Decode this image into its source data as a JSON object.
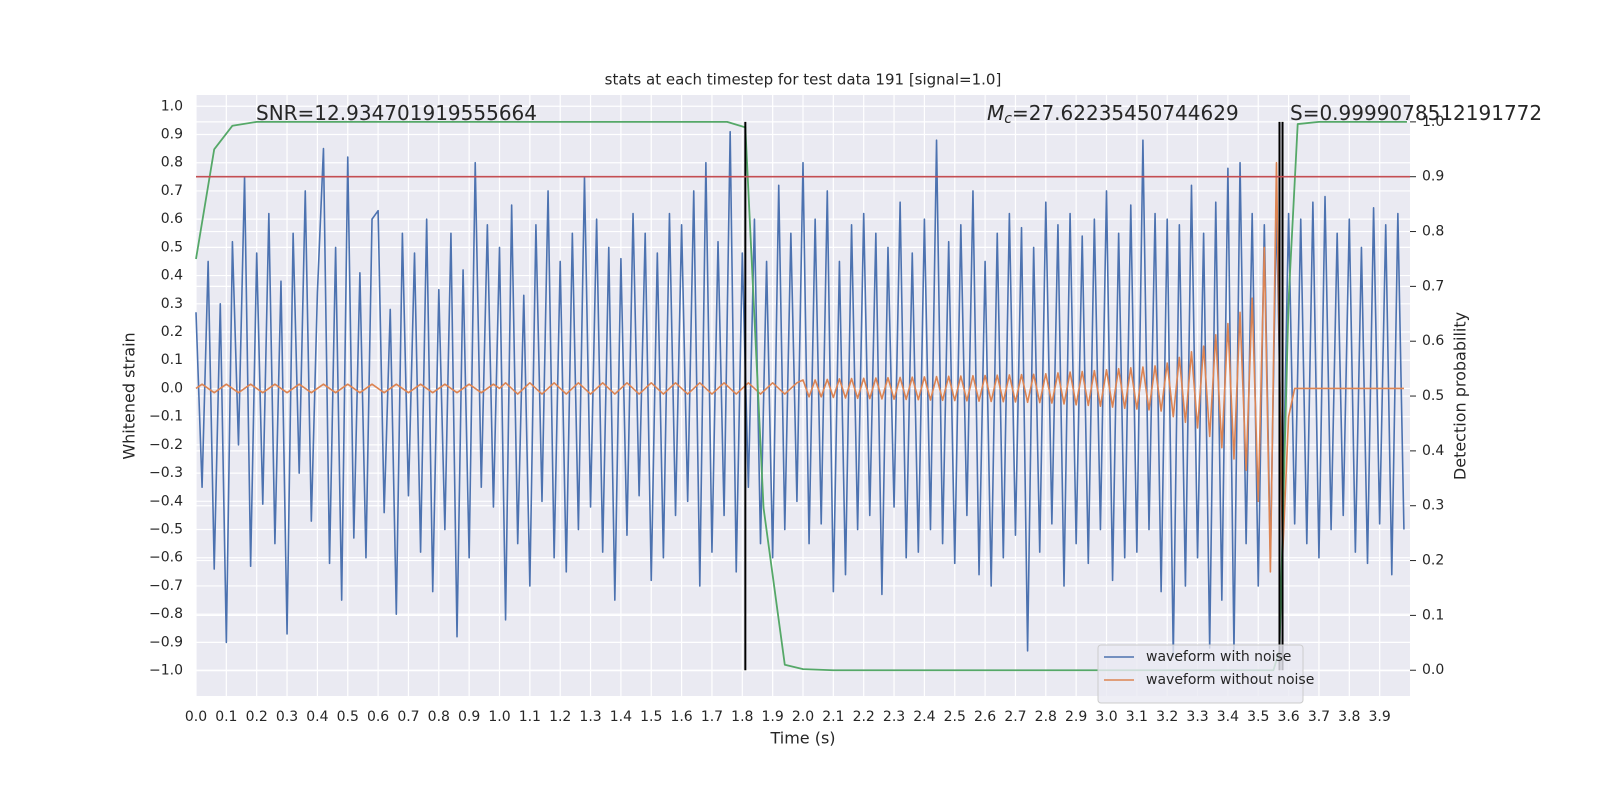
{
  "chart_data": {
    "type": "line",
    "title": "stats at each timestep for test data 191 [signal=1.0]",
    "x_label": "Time (s)",
    "y_label": "Whitened strain",
    "y2_label": "Detection probability",
    "annotations": [
      {
        "text": "SNR=12.934701919555664"
      },
      {
        "symbol": "M",
        "subscript": "c",
        "text": "=27.62235450744629"
      },
      {
        "text": "S=0.9999078512191772"
      }
    ],
    "x": [
      0,
      0.02,
      0.04,
      0.06,
      0.08,
      0.1,
      0.12,
      0.14,
      0.16,
      0.18,
      0.2,
      0.22,
      0.24,
      0.26,
      0.28,
      0.3,
      0.32,
      0.34,
      0.36,
      0.38,
      0.4,
      0.42,
      0.44,
      0.46,
      0.48,
      0.5,
      0.52,
      0.54,
      0.56,
      0.58,
      0.6,
      0.62,
      0.64,
      0.66,
      0.68,
      0.7,
      0.72,
      0.74,
      0.76,
      0.78,
      0.8,
      0.82,
      0.84,
      0.86,
      0.88,
      0.9,
      0.92,
      0.94,
      0.96,
      0.98,
      1.0,
      1.02,
      1.04,
      1.06,
      1.08,
      1.1,
      1.12,
      1.14,
      1.16,
      1.18,
      1.2,
      1.22,
      1.24,
      1.26,
      1.28,
      1.3,
      1.32,
      1.34,
      1.36,
      1.38,
      1.4,
      1.42,
      1.44,
      1.46,
      1.48,
      1.5,
      1.52,
      1.54,
      1.56,
      1.58,
      1.6,
      1.62,
      1.64,
      1.66,
      1.68,
      1.7,
      1.72,
      1.74,
      1.76,
      1.78,
      1.8,
      1.82,
      1.84,
      1.86,
      1.88,
      1.9,
      1.92,
      1.94,
      1.96,
      1.98,
      2.0,
      2.02,
      2.04,
      2.06,
      2.08,
      2.1,
      2.12,
      2.14,
      2.16,
      2.18,
      2.2,
      2.22,
      2.24,
      2.26,
      2.28,
      2.3,
      2.32,
      2.34,
      2.36,
      2.38,
      2.4,
      2.42,
      2.44,
      2.46,
      2.48,
      2.5,
      2.52,
      2.54,
      2.56,
      2.58,
      2.6,
      2.62,
      2.64,
      2.66,
      2.68,
      2.7,
      2.72,
      2.74,
      2.76,
      2.78,
      2.8,
      2.82,
      2.84,
      2.86,
      2.88,
      2.9,
      2.92,
      2.94,
      2.96,
      2.98,
      3.0,
      3.02,
      3.04,
      3.06,
      3.08,
      3.1,
      3.12,
      3.14,
      3.16,
      3.18,
      3.2,
      3.22,
      3.24,
      3.26,
      3.28,
      3.3,
      3.32,
      3.34,
      3.36,
      3.38,
      3.4,
      3.42,
      3.44,
      3.46,
      3.48,
      3.5,
      3.52,
      3.54,
      3.56,
      3.58,
      3.6,
      3.62,
      3.64,
      3.66,
      3.68,
      3.7,
      3.72,
      3.74,
      3.76,
      3.78,
      3.8,
      3.82,
      3.84,
      3.86,
      3.88,
      3.9,
      3.92,
      3.94,
      3.96,
      3.98
    ],
    "series": [
      {
        "name": "waveform with noise",
        "color": "#4c72b0",
        "values": [
          0.27,
          -0.35,
          0.45,
          -0.64,
          0.3,
          -0.9,
          0.52,
          -0.2,
          0.75,
          -0.63,
          0.48,
          -0.41,
          0.62,
          -0.55,
          0.38,
          -0.87,
          0.55,
          -0.3,
          0.7,
          -0.47,
          0.34,
          0.85,
          -0.62,
          0.5,
          -0.75,
          0.82,
          -0.53,
          0.41,
          -0.6,
          0.6,
          0.63,
          -0.44,
          0.28,
          -0.8,
          0.55,
          -0.38,
          0.48,
          -0.58,
          0.6,
          -0.72,
          0.35,
          -0.5,
          0.55,
          -0.88,
          0.42,
          -0.6,
          0.8,
          -0.35,
          0.58,
          -0.42,
          0.5,
          -0.82,
          0.65,
          -0.55,
          0.33,
          -0.7,
          0.58,
          -0.4,
          0.7,
          -0.6,
          0.45,
          -0.65,
          0.55,
          -0.5,
          0.75,
          -0.42,
          0.6,
          -0.58,
          0.5,
          -0.75,
          0.46,
          -0.52,
          0.62,
          -0.38,
          0.55,
          -0.68,
          0.48,
          -0.6,
          0.62,
          -0.45,
          0.58,
          -0.4,
          0.7,
          -0.7,
          0.8,
          -0.58,
          0.52,
          -0.45,
          0.91,
          -0.65,
          0.48,
          -0.35,
          0.6,
          -0.55,
          0.45,
          -0.6,
          0.72,
          -0.5,
          0.55,
          -0.4,
          0.8,
          -0.55,
          0.6,
          -0.48,
          0.7,
          -0.72,
          0.45,
          -0.66,
          0.58,
          -0.5,
          0.62,
          -0.45,
          0.55,
          -0.73,
          0.5,
          -0.42,
          0.66,
          -0.6,
          0.48,
          -0.58,
          0.6,
          -0.5,
          0.88,
          -0.55,
          0.52,
          -0.62,
          0.58,
          -0.45,
          0.7,
          -0.66,
          0.45,
          -0.7,
          0.55,
          -0.6,
          0.62,
          -0.52,
          0.57,
          -0.93,
          0.5,
          -0.58,
          0.66,
          -0.48,
          0.58,
          -0.7,
          0.62,
          -0.55,
          0.54,
          -0.62,
          0.6,
          -0.5,
          0.7,
          -0.68,
          0.55,
          -0.6,
          0.65,
          -0.58,
          0.88,
          -0.5,
          0.62,
          -0.72,
          0.6,
          -0.95,
          0.58,
          -0.7,
          0.72,
          -0.6,
          0.55,
          -0.92,
          0.66,
          -0.75,
          0.78,
          -0.93,
          0.8,
          -0.55,
          0.62,
          -0.7,
          0.58,
          -0.6,
          0.64,
          -0.5,
          0.62,
          -0.48,
          0.6,
          -0.55,
          0.66,
          -0.6,
          0.68,
          -0.5,
          0.55,
          -0.45,
          0.6,
          -0.58,
          0.5,
          -0.62,
          0.64,
          -0.48,
          0.58,
          -0.66,
          0.62,
          -0.5
        ]
      },
      {
        "name": "waveform without noise",
        "color": "#dd8452",
        "values": [
          0,
          0.015,
          0,
          -0.015,
          0,
          0.015,
          0,
          -0.015,
          0,
          0.015,
          0,
          -0.015,
          0,
          0.015,
          0,
          -0.015,
          0,
          0.015,
          0,
          -0.015,
          0,
          0.015,
          0,
          -0.015,
          0,
          0.015,
          0,
          -0.015,
          0,
          0.015,
          0,
          -0.015,
          0,
          0.015,
          0,
          -0.015,
          0,
          0.015,
          0,
          -0.015,
          0,
          0.015,
          0,
          -0.015,
          0,
          0.015,
          0,
          -0.015,
          0,
          0.015,
          0,
          0.02,
          0,
          -0.02,
          0,
          0.02,
          0,
          -0.02,
          0,
          0.02,
          0,
          -0.02,
          0,
          0.02,
          0,
          -0.02,
          0,
          0.02,
          0,
          -0.02,
          0,
          0.02,
          0,
          -0.02,
          0,
          0.02,
          0,
          -0.02,
          0,
          0.02,
          0,
          -0.02,
          0,
          0.02,
          0,
          -0.02,
          0,
          0.02,
          0,
          -0.02,
          0,
          0.02,
          0,
          -0.02,
          0,
          0.02,
          0,
          -0.02,
          0,
          0.02,
          0.03,
          -0.03,
          0.03,
          -0.03,
          0.032,
          -0.032,
          0.034,
          -0.034,
          0.035,
          -0.035,
          0.036,
          -0.036,
          0.037,
          -0.037,
          0.038,
          -0.038,
          0.039,
          -0.039,
          0.04,
          -0.04,
          0.041,
          -0.041,
          0.042,
          -0.042,
          0.043,
          -0.043,
          0.044,
          -0.044,
          0.045,
          -0.045,
          0.046,
          -0.046,
          0.047,
          -0.047,
          0.048,
          -0.048,
          0.049,
          -0.049,
          0.05,
          -0.05,
          0.052,
          -0.052,
          0.055,
          -0.055,
          0.058,
          -0.058,
          0.06,
          -0.06,
          0.063,
          -0.063,
          0.066,
          -0.066,
          0.07,
          -0.07,
          0.073,
          -0.073,
          0.076,
          -0.076,
          0.08,
          -0.08,
          0.09,
          -0.1,
          0.11,
          -0.12,
          0.13,
          -0.14,
          0.15,
          -0.17,
          0.19,
          -0.21,
          0.23,
          -0.25,
          0.27,
          -0.29,
          0.32,
          -0.4,
          0.5,
          -0.65,
          0.8,
          -0.6,
          -0.1,
          0,
          0,
          0,
          0,
          0,
          0,
          0,
          0,
          0,
          0,
          0,
          0,
          0,
          0,
          0,
          0,
          0,
          0,
          0
        ]
      },
      {
        "color": "#55a868",
        "axis": "y2",
        "x": [
          0,
          0.06,
          0.12,
          0.2,
          0.4,
          0.6,
          0.8,
          1.0,
          1.2,
          1.4,
          1.6,
          1.75,
          1.81,
          1.87,
          1.94,
          2.0,
          2.1,
          2.4,
          2.8,
          3.2,
          3.55,
          3.57,
          3.6,
          3.63,
          3.7,
          3.99
        ],
        "values": [
          0.75,
          0.95,
          0.993,
          1.0,
          1.0,
          1.0,
          1.0,
          1.0,
          1.0,
          1.0,
          1.0,
          1.0,
          0.99,
          0.296,
          0.01,
          0.002,
          0.0,
          0.0,
          0.0,
          0.0,
          0.0,
          0.036,
          0.675,
          0.996,
          1.0,
          1.0
        ]
      }
    ],
    "vlines": [
      1.81,
      3.57,
      3.58
    ],
    "vline_color": "#000000",
    "vline_span": [
      0,
      1
    ],
    "threshold": 0.9,
    "threshold_color": "#c44e52",
    "xlim": [
      0,
      4.0
    ],
    "ylim": [
      -1.09,
      1.04
    ],
    "y2lim": [
      -0.047,
      1.049
    ],
    "xticks": [
      {
        "value": 0,
        "label": "0.0"
      },
      0.1,
      0.2,
      0.3,
      0.4,
      0.5,
      0.6,
      0.7,
      0.8,
      0.9,
      {
        "value": 1,
        "label": "1.0"
      },
      1.1,
      1.2,
      1.3,
      1.4,
      1.5,
      1.6,
      1.7,
      1.8,
      1.9,
      {
        "value": 2,
        "label": "2.0"
      },
      2.1,
      2.2,
      2.3,
      2.4,
      2.5,
      2.6,
      2.7,
      2.8,
      2.9,
      {
        "value": 3,
        "label": "3.0"
      },
      3.1,
      3.2,
      3.3,
      3.4,
      3.5,
      3.6,
      3.7,
      3.8,
      3.9
    ],
    "yticks": [
      {
        "value": -1,
        "label": "−1.0"
      },
      {
        "value": -0.9,
        "label": "−0.9"
      },
      {
        "value": -0.8,
        "label": "−0.8"
      },
      {
        "value": -0.7,
        "label": "−0.7"
      },
      {
        "value": -0.6,
        "label": "−0.6"
      },
      {
        "value": -0.5,
        "label": "−0.5"
      },
      {
        "value": -0.4,
        "label": "−0.4"
      },
      {
        "value": -0.3,
        "label": "−0.3"
      },
      {
        "value": -0.2,
        "label": "−0.2"
      },
      {
        "value": -0.1,
        "label": "−0.1"
      },
      {
        "value": 0,
        "label": "0.0"
      },
      0.1,
      0.2,
      0.3,
      0.4,
      0.5,
      0.6,
      0.7,
      0.8,
      0.9,
      {
        "value": 1,
        "label": "1.0"
      }
    ],
    "y2ticks": [
      {
        "value": 0,
        "label": "0.0"
      },
      0.1,
      0.2,
      0.3,
      0.4,
      0.5,
      0.6,
      0.7,
      0.8,
      0.9,
      {
        "value": 1,
        "label": "1.0"
      }
    ],
    "grid": true,
    "legend": "lower right"
  }
}
